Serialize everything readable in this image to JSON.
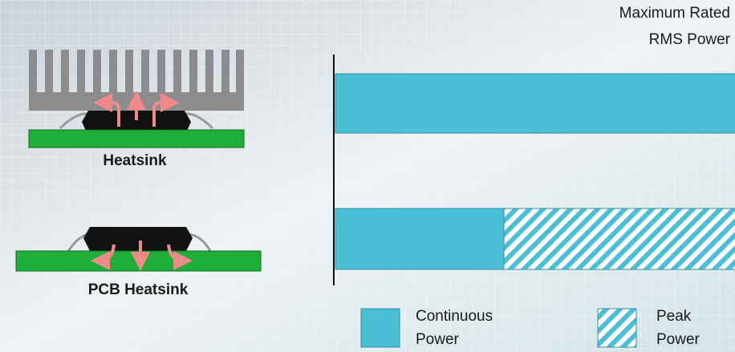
{
  "title": [
    "Maximum Rated",
    "RMS Power"
  ],
  "illustrations": [
    {
      "label": "Heatsink"
    },
    {
      "label": "PCB Heatsink"
    }
  ],
  "legend": [
    {
      "lines": [
        "Continuous",
        "Power"
      ]
    },
    {
      "lines": [
        "Peak",
        "Power"
      ]
    }
  ]
}
